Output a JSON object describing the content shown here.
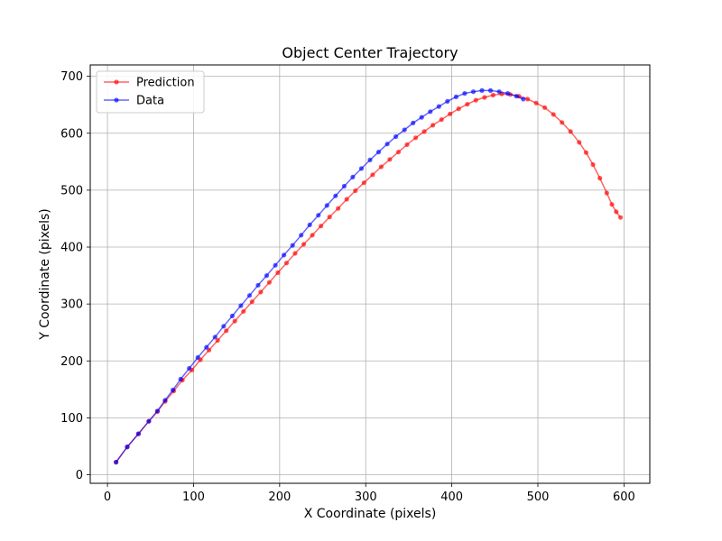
{
  "chart_data": {
    "type": "line",
    "title": "Object Center Trajectory",
    "xlabel": "X Coordinate (pixels)",
    "ylabel": "Y Coordinate (pixels)",
    "xlim": [
      -20,
      630
    ],
    "ylim": [
      -15,
      720
    ],
    "xticks": [
      0,
      100,
      200,
      300,
      400,
      500,
      600
    ],
    "yticks": [
      0,
      100,
      200,
      300,
      400,
      500,
      600,
      700
    ],
    "grid": true,
    "legend_position": "top-left",
    "series": [
      {
        "name": "Prediction",
        "color": "#ff0000",
        "marker": "circle",
        "x": [
          10,
          23,
          36,
          48,
          58,
          67,
          77,
          87,
          98,
          108,
          118,
          128,
          138,
          148,
          158,
          168,
          178,
          188,
          198,
          208,
          218,
          228,
          238,
          248,
          258,
          268,
          278,
          288,
          298,
          308,
          318,
          328,
          338,
          348,
          358,
          368,
          378,
          388,
          398,
          408,
          418,
          428,
          438,
          448,
          458,
          468,
          478,
          488,
          498,
          508,
          518,
          528,
          538,
          548,
          556,
          564,
          572,
          580,
          586,
          591,
          596
        ],
        "y": [
          22,
          49,
          72,
          94,
          111,
          129,
          147,
          166,
          184,
          202,
          219,
          236,
          253,
          270,
          287,
          304,
          321,
          338,
          355,
          372,
          389,
          405,
          421,
          437,
          453,
          468,
          484,
          499,
          513,
          527,
          541,
          554,
          567,
          580,
          592,
          603,
          614,
          624,
          634,
          643,
          651,
          658,
          663,
          667,
          669,
          668,
          665,
          660,
          653,
          645,
          633,
          619,
          603,
          584,
          566,
          545,
          521,
          495,
          475,
          462,
          452
        ]
      },
      {
        "name": "Data",
        "color": "#0000ff",
        "marker": "circle",
        "x": [
          10,
          23,
          36,
          48,
          58,
          67,
          76,
          85,
          95,
          105,
          115,
          125,
          135,
          145,
          155,
          165,
          175,
          185,
          195,
          205,
          215,
          225,
          235,
          245,
          255,
          265,
          275,
          285,
          295,
          305,
          315,
          325,
          335,
          345,
          355,
          365,
          375,
          385,
          395,
          405,
          415,
          425,
          435,
          445,
          455,
          465,
          475,
          483
        ],
        "y": [
          22,
          49,
          72,
          94,
          112,
          131,
          149,
          168,
          187,
          206,
          224,
          242,
          261,
          279,
          297,
          315,
          333,
          350,
          368,
          386,
          403,
          421,
          439,
          456,
          473,
          490,
          507,
          523,
          538,
          553,
          567,
          581,
          594,
          606,
          618,
          628,
          638,
          647,
          656,
          664,
          670,
          673,
          675,
          675,
          673,
          670,
          665,
          660
        ]
      }
    ]
  }
}
